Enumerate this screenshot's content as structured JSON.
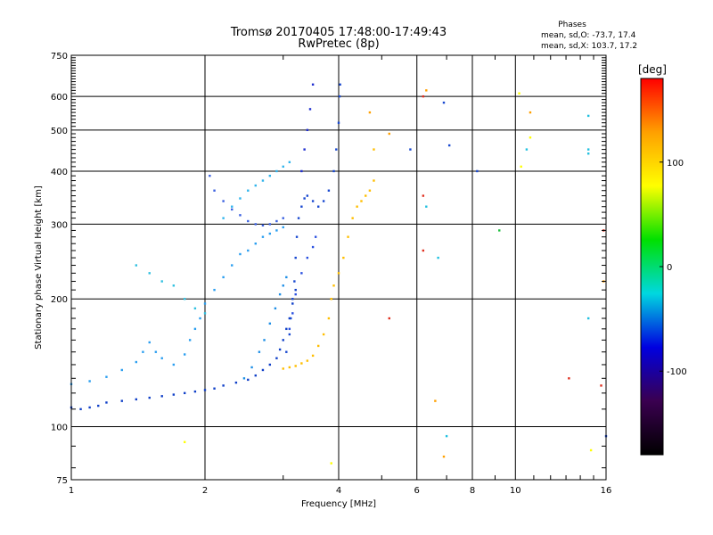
{
  "chart_data": {
    "type": "scatter",
    "title": "Tromsø 20170405 17:48:00-17:49:43",
    "subtitle": "RwPretec (8p)",
    "xlabel": "Frequency [MHz]",
    "ylabel": "Stationary phase Virtual Height [km]",
    "x_scale": "log",
    "y_scale": "log",
    "xlim": [
      1,
      16
    ],
    "ylim": [
      75,
      750
    ],
    "x_ticks": [
      1,
      2,
      4,
      6,
      8,
      10,
      16
    ],
    "x_minor_ticks": [
      3,
      5,
      7,
      9,
      11,
      12,
      13,
      14,
      15
    ],
    "y_ticks": [
      75,
      100,
      200,
      300,
      400,
      500,
      600,
      750
    ],
    "grid": true,
    "phases": {
      "title": "Phases",
      "o_line": "mean, sd,O: -73.7, 17.4",
      "x_line": "mean, sd,X: 103.7, 17.2"
    },
    "colorbar": {
      "label": "[deg]",
      "range": [
        -180,
        180
      ],
      "ticks": [
        100,
        0,
        -100
      ],
      "colors": [
        "#ff0000",
        "#ffa000",
        "#ffff00",
        "#00e000",
        "#00d8e0",
        "#0000e0",
        "#3a0050",
        "#000000"
      ]
    },
    "series": [
      {
        "color": "#1040c8",
        "points": [
          [
            1.0,
            111
          ],
          [
            1.05,
            110
          ],
          [
            1.1,
            111
          ],
          [
            1.15,
            112
          ],
          [
            1.2,
            114
          ],
          [
            1.3,
            115
          ],
          [
            1.4,
            116
          ],
          [
            1.5,
            117
          ],
          [
            1.6,
            118
          ],
          [
            1.7,
            119
          ],
          [
            1.8,
            120
          ],
          [
            1.9,
            121
          ],
          [
            2.0,
            122
          ],
          [
            2.1,
            123
          ],
          [
            2.2,
            125
          ],
          [
            2.35,
            127
          ],
          [
            2.5,
            129
          ],
          [
            2.6,
            132
          ],
          [
            2.7,
            136
          ],
          [
            2.8,
            140
          ],
          [
            2.9,
            145
          ],
          [
            2.95,
            152
          ],
          [
            3.0,
            160
          ],
          [
            3.05,
            170
          ],
          [
            3.1,
            180
          ],
          [
            3.15,
            195
          ],
          [
            3.2,
            210
          ]
        ]
      },
      {
        "color": "#1e8fe6",
        "points": [
          [
            2.45,
            130
          ],
          [
            2.55,
            138
          ],
          [
            2.65,
            150
          ],
          [
            2.72,
            160
          ],
          [
            2.8,
            175
          ],
          [
            2.88,
            190
          ],
          [
            2.95,
            205
          ],
          [
            3.0,
            215
          ],
          [
            3.05,
            225
          ]
        ]
      },
      {
        "color": "#1848d0",
        "points": [
          [
            3.05,
            150
          ],
          [
            3.1,
            165
          ],
          [
            3.12,
            180
          ],
          [
            3.15,
            200
          ],
          [
            3.18,
            220
          ],
          [
            3.2,
            250
          ],
          [
            3.22,
            280
          ],
          [
            3.25,
            310
          ],
          [
            3.3,
            330
          ],
          [
            3.35,
            345
          ],
          [
            3.4,
            350
          ],
          [
            3.5,
            340
          ],
          [
            3.6,
            330
          ],
          [
            3.7,
            340
          ],
          [
            3.8,
            360
          ],
          [
            3.9,
            400
          ],
          [
            3.95,
            450
          ],
          [
            4.0,
            520
          ],
          [
            4.02,
            600
          ],
          [
            4.03,
            640
          ]
        ]
      },
      {
        "color": "#2a50e0",
        "points": [
          [
            3.1,
            170
          ],
          [
            3.15,
            185
          ],
          [
            3.2,
            205
          ],
          [
            3.3,
            230
          ],
          [
            3.4,
            250
          ],
          [
            3.5,
            265
          ],
          [
            3.55,
            280
          ]
        ]
      },
      {
        "color": "#ffbe00",
        "points": [
          [
            3.0,
            137
          ],
          [
            3.1,
            138
          ],
          [
            3.2,
            139
          ],
          [
            3.3,
            141
          ],
          [
            3.4,
            143
          ],
          [
            3.5,
            147
          ],
          [
            3.6,
            155
          ],
          [
            3.7,
            165
          ],
          [
            3.8,
            180
          ],
          [
            3.85,
            200
          ],
          [
            3.9,
            215
          ],
          [
            4.0,
            230
          ],
          [
            4.1,
            250
          ],
          [
            4.2,
            280
          ],
          [
            4.3,
            310
          ],
          [
            4.4,
            330
          ],
          [
            4.5,
            340
          ],
          [
            4.6,
            350
          ],
          [
            4.7,
            360
          ],
          [
            4.8,
            380
          ],
          [
            4.8,
            450
          ]
        ]
      },
      {
        "color": "#2a9ef0",
        "points": [
          [
            1.0,
            126
          ],
          [
            1.1,
            128
          ],
          [
            1.2,
            131
          ],
          [
            1.3,
            136
          ],
          [
            1.4,
            142
          ],
          [
            1.45,
            150
          ],
          [
            1.5,
            158
          ],
          [
            1.55,
            150
          ],
          [
            1.6,
            145
          ],
          [
            1.7,
            140
          ],
          [
            1.8,
            148
          ],
          [
            1.85,
            160
          ],
          [
            1.9,
            170
          ],
          [
            1.95,
            180
          ],
          [
            2.0,
            195
          ],
          [
            2.1,
            210
          ],
          [
            2.2,
            225
          ],
          [
            2.3,
            240
          ],
          [
            2.4,
            255
          ],
          [
            2.5,
            260
          ],
          [
            2.6,
            270
          ],
          [
            2.7,
            280
          ],
          [
            2.8,
            285
          ],
          [
            2.9,
            290
          ],
          [
            3.0,
            295
          ]
        ]
      },
      {
        "color": "#30b4ec",
        "points": [
          [
            2.2,
            310
          ],
          [
            2.3,
            330
          ],
          [
            2.4,
            345
          ],
          [
            2.5,
            360
          ],
          [
            2.6,
            370
          ],
          [
            2.7,
            380
          ],
          [
            2.8,
            390
          ],
          [
            2.9,
            400
          ],
          [
            3.0,
            410
          ],
          [
            3.1,
            420
          ]
        ]
      },
      {
        "color": "#3a60e0",
        "points": [
          [
            2.05,
            390
          ],
          [
            2.1,
            360
          ],
          [
            2.2,
            340
          ],
          [
            2.3,
            325
          ],
          [
            2.4,
            315
          ],
          [
            2.5,
            305
          ],
          [
            2.6,
            300
          ],
          [
            2.7,
            298
          ],
          [
            2.8,
            300
          ],
          [
            2.9,
            305
          ],
          [
            3.0,
            310
          ]
        ]
      },
      {
        "color": "#202fd0",
        "points": [
          [
            3.3,
            400
          ],
          [
            3.35,
            450
          ],
          [
            3.4,
            500
          ],
          [
            3.45,
            560
          ],
          [
            3.5,
            640
          ]
        ]
      },
      {
        "color": "#30c0e0",
        "points": [
          [
            1.4,
            240
          ],
          [
            1.5,
            230
          ],
          [
            1.6,
            220
          ],
          [
            1.7,
            215
          ],
          [
            1.8,
            200
          ],
          [
            1.9,
            190
          ],
          [
            2.0,
            185
          ]
        ]
      },
      {
        "color": "#e03020",
        "points": [
          [
            6.2,
            600
          ],
          [
            6.2,
            350
          ],
          [
            6.2,
            260
          ],
          [
            5.2,
            180
          ],
          [
            13.2,
            130
          ],
          [
            15.8,
            290
          ],
          [
            15.6,
            125
          ]
        ]
      },
      {
        "color": "#ffa000",
        "points": [
          [
            6.3,
            620
          ],
          [
            5.2,
            490
          ],
          [
            4.7,
            550
          ],
          [
            6.6,
            115
          ],
          [
            6.9,
            85
          ],
          [
            10.8,
            550
          ],
          [
            15.8,
            220
          ]
        ]
      },
      {
        "color": "#20c0e0",
        "points": [
          [
            6.7,
            250
          ],
          [
            7.0,
            95
          ],
          [
            6.3,
            330
          ],
          [
            14.6,
            540
          ],
          [
            14.6,
            450
          ],
          [
            14.6,
            440
          ],
          [
            14.6,
            180
          ],
          [
            10.6,
            450
          ]
        ]
      },
      {
        "color": "#1848d0",
        "points": [
          [
            7.1,
            460
          ],
          [
            5.8,
            450
          ],
          [
            6.9,
            580
          ],
          [
            8.2,
            400
          ],
          [
            16.0,
            95
          ]
        ]
      },
      {
        "color": "#ffff00",
        "points": [
          [
            10.3,
            410
          ],
          [
            10.8,
            480
          ],
          [
            10.2,
            610
          ],
          [
            14.8,
            88
          ],
          [
            3.85,
            82
          ],
          [
            1.8,
            92
          ]
        ]
      },
      {
        "color": "#20c040",
        "points": [
          [
            9.2,
            290
          ]
        ]
      }
    ]
  }
}
